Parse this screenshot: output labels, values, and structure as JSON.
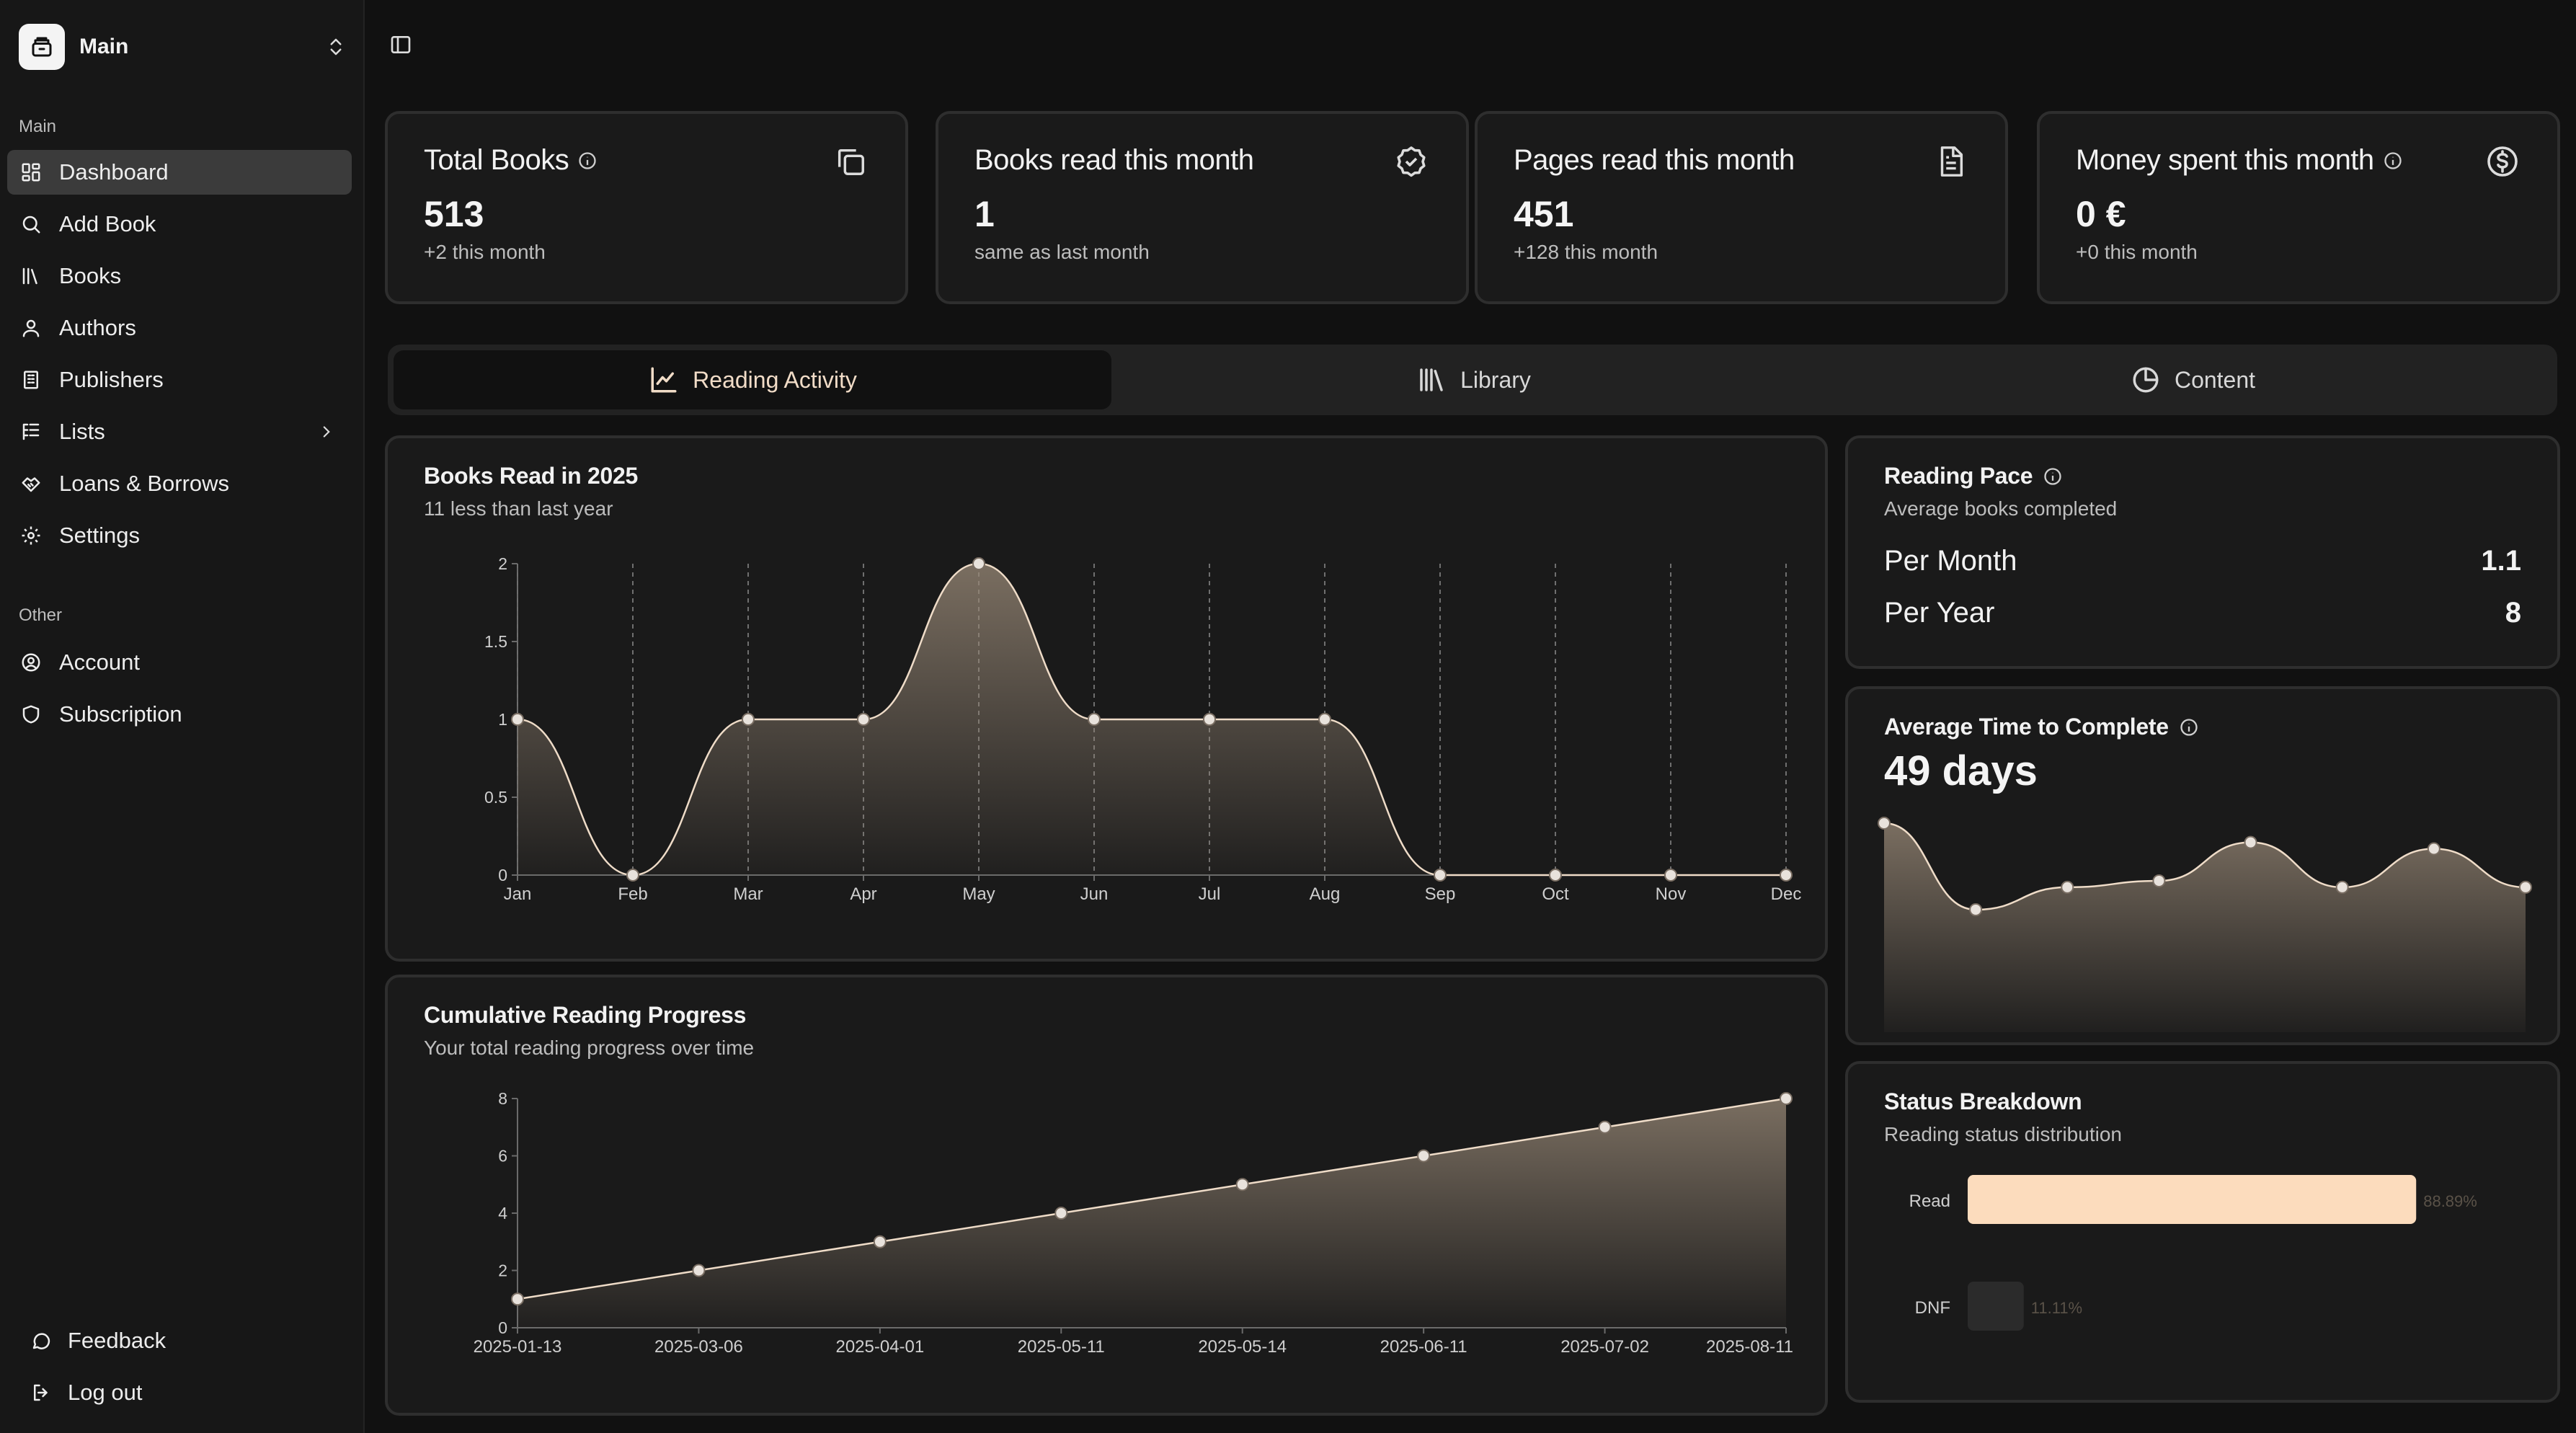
{
  "sidebar": {
    "workspace": {
      "name": "Main",
      "icon": "archive-icon"
    },
    "main_group_label": "Main",
    "items": [
      {
        "label": "Dashboard",
        "icon": "dashboard-icon",
        "active": true
      },
      {
        "label": "Add Book",
        "icon": "search-icon"
      },
      {
        "label": "Books",
        "icon": "library-icon"
      },
      {
        "label": "Authors",
        "icon": "user-icon"
      },
      {
        "label": "Publishers",
        "icon": "building-icon"
      },
      {
        "label": "Lists",
        "icon": "list-icon",
        "has_submenu": true
      },
      {
        "label": "Loans & Borrows",
        "icon": "handshake-icon"
      },
      {
        "label": "Settings",
        "icon": "gear-icon"
      }
    ],
    "other_group_label": "Other",
    "other_items": [
      {
        "label": "Account",
        "icon": "user-circle-icon"
      },
      {
        "label": "Subscription",
        "icon": "shield-icon"
      }
    ],
    "footer": [
      {
        "label": "Feedback",
        "icon": "message-icon"
      },
      {
        "label": "Log out",
        "icon": "logout-icon"
      }
    ]
  },
  "stats": [
    {
      "title": "Total Books",
      "value": "513",
      "sub": "+2 this month",
      "icon": "copy-icon",
      "has_info": true
    },
    {
      "title": "Books read this month",
      "value": "1",
      "sub": "same as last month",
      "icon": "check-badge-icon",
      "has_info": false
    },
    {
      "title": "Pages read this month",
      "value": "451",
      "sub": "+128 this month",
      "icon": "file-text-icon",
      "has_info": false
    },
    {
      "title": "Money spent this month",
      "value": "0 €",
      "sub": "+0 this month",
      "icon": "dollar-circle-icon",
      "has_info": true
    }
  ],
  "tabs": [
    {
      "label": "Reading Activity",
      "icon": "line-chart-icon",
      "active": true
    },
    {
      "label": "Library",
      "icon": "library-icon"
    },
    {
      "label": "Content",
      "icon": "pie-chart-icon"
    }
  ],
  "books_read": {
    "title": "Books Read in 2025",
    "subtitle": "11 less than last year"
  },
  "cumulative": {
    "title": "Cumulative Reading Progress",
    "subtitle": "Your total reading progress over time"
  },
  "reading_pace": {
    "title": "Reading Pace",
    "subtitle": "Average books completed",
    "rows": [
      {
        "label": "Per Month",
        "value": "1.1"
      },
      {
        "label": "Per Year",
        "value": "8"
      }
    ]
  },
  "avg_time": {
    "title": "Average Time to Complete",
    "value": "49 days"
  },
  "status_breakdown": {
    "title": "Status Breakdown",
    "subtitle": "Reading status distribution"
  },
  "colors": {
    "accent": "#fcdcbd",
    "line": "#efdcc8",
    "background": "#111111",
    "card": "#1a1a1a"
  },
  "chart_data": [
    {
      "type": "area",
      "title": "Books Read in 2025",
      "categories": [
        "Jan",
        "Feb",
        "Mar",
        "Apr",
        "May",
        "Jun",
        "Jul",
        "Aug",
        "Sep",
        "Oct",
        "Nov",
        "Dec"
      ],
      "values": [
        1,
        0,
        1,
        1,
        2,
        1,
        1,
        1,
        0,
        0,
        0,
        0
      ],
      "ylim": [
        0,
        2
      ],
      "yticks": [
        "0",
        "0.5",
        "1",
        "1.5",
        "2"
      ],
      "grid": "vertical dashed"
    },
    {
      "type": "area",
      "title": "Cumulative Reading Progress",
      "categories": [
        "2025-01-13",
        "2025-03-06",
        "2025-04-01",
        "2025-05-11",
        "2025-05-14",
        "2025-06-11",
        "2025-07-02",
        "2025-08-11"
      ],
      "values": [
        1,
        2,
        3,
        4,
        5,
        6,
        7,
        8
      ],
      "ylim": [
        0,
        8
      ],
      "yticks": [
        "0",
        "2",
        "4",
        "6",
        "8"
      ]
    },
    {
      "type": "area",
      "title": "Average Time to Complete",
      "values": [
        120,
        12,
        40,
        48,
        96,
        40,
        88,
        40
      ],
      "axes": "hidden"
    },
    {
      "type": "bar",
      "orientation": "horizontal",
      "title": "Status Breakdown",
      "categories": [
        "Read",
        "DNF"
      ],
      "values": [
        88.89,
        11.11
      ],
      "labels": [
        "88.89%",
        "11.11%"
      ]
    }
  ]
}
